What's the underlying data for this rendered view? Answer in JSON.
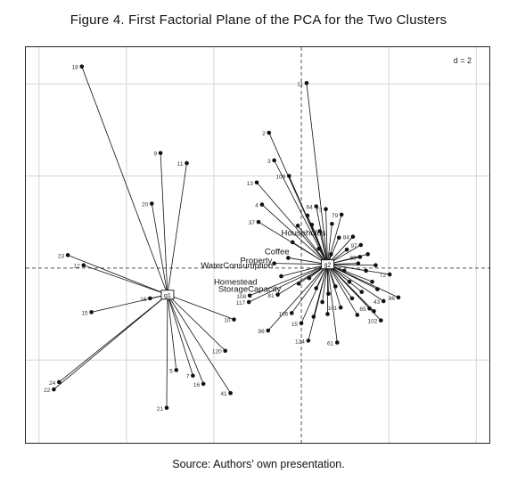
{
  "figure": {
    "title": "Figure 4. First Factorial Plane of the PCA for the Two Clusters",
    "source": "Source: Authors’ own presentation."
  },
  "chart_data": {
    "type": "scatter",
    "title": "Figure 4. First Factorial Plane of the PCA for the Two Clusters",
    "xlabel": "",
    "ylabel": "",
    "xlim": [
      -6.3,
      4.3
    ],
    "ylim": [
      -3.8,
      4.8
    ],
    "grid_step": 2,
    "grid": true,
    "grid_label": "d = 2",
    "clusters": [
      {
        "name": "g1",
        "center": [
          -3.06,
          -0.58
        ],
        "points": [
          {
            "label": "18",
            "x": -5.02,
            "y": 4.38
          },
          {
            "label": "9",
            "x": -3.22,
            "y": 2.5
          },
          {
            "label": "11",
            "x": -2.62,
            "y": 2.28
          },
          {
            "label": "20",
            "x": -3.42,
            "y": 1.4
          },
          {
            "label": "23",
            "x": -5.34,
            "y": 0.28
          },
          {
            "label": "12",
            "x": -4.98,
            "y": 0.06
          },
          {
            "label": "16",
            "x": -3.46,
            "y": -0.66
          },
          {
            "label": "15",
            "x": -4.8,
            "y": -0.96
          },
          {
            "label": "24",
            "x": -5.54,
            "y": -2.48
          },
          {
            "label": "22",
            "x": -5.66,
            "y": -2.64
          },
          {
            "label": "5",
            "x": -2.86,
            "y": -2.22
          },
          {
            "label": "7",
            "x": -2.48,
            "y": -2.34
          },
          {
            "label": "16",
            "x": -2.24,
            "y": -2.52
          },
          {
            "label": "10",
            "x": -1.54,
            "y": -1.12
          },
          {
            "label": "120",
            "x": -1.74,
            "y": -1.8
          },
          {
            "label": "41",
            "x": -1.62,
            "y": -2.72
          },
          {
            "label": "21",
            "x": -3.08,
            "y": -3.04
          }
        ]
      },
      {
        "name": "g2",
        "center": [
          0.6,
          0.08
        ],
        "points": [
          {
            "label": "11",
            "x": 0.12,
            "y": 4.02
          },
          {
            "label": "2",
            "x": -0.74,
            "y": 2.94
          },
          {
            "label": "3",
            "x": -0.62,
            "y": 2.34
          },
          {
            "label": "13",
            "x": -1.02,
            "y": 1.86
          },
          {
            "label": "109",
            "x": -0.28,
            "y": 2.0
          },
          {
            "label": "37",
            "x": -0.98,
            "y": 1.0
          },
          {
            "label": "4",
            "x": -0.9,
            "y": 1.38
          },
          {
            "label": "64",
            "x": 0.34,
            "y": 1.34
          },
          {
            "label": "73",
            "x": 0.56,
            "y": 1.28
          },
          {
            "label": "79",
            "x": 0.92,
            "y": 1.16
          },
          {
            "label": "84",
            "x": 1.18,
            "y": 0.68
          },
          {
            "label": "97",
            "x": 1.36,
            "y": 0.5
          },
          {
            "label": "88",
            "x": 1.34,
            "y": 0.24
          },
          {
            "label": "72",
            "x": 2.02,
            "y": -0.14
          },
          {
            "label": "86",
            "x": 2.22,
            "y": -0.64
          },
          {
            "label": "43",
            "x": 1.88,
            "y": -0.72
          },
          {
            "label": "102",
            "x": 1.82,
            "y": -1.14
          },
          {
            "label": "65",
            "x": 1.56,
            "y": -0.88
          },
          {
            "label": "101",
            "x": 0.9,
            "y": -0.86
          },
          {
            "label": "108",
            "x": -1.18,
            "y": -0.6
          },
          {
            "label": "117",
            "x": -1.2,
            "y": -0.74
          },
          {
            "label": "81",
            "x": -0.54,
            "y": -0.58
          },
          {
            "label": "96",
            "x": -0.76,
            "y": -1.36
          },
          {
            "label": "106",
            "x": -0.22,
            "y": -0.98
          },
          {
            "label": "15",
            "x": 0.0,
            "y": -1.2
          },
          {
            "label": "124",
            "x": 0.16,
            "y": -1.58
          },
          {
            "label": "61",
            "x": 0.82,
            "y": -1.62
          },
          {
            "label": "",
            "x": 0.14,
            "y": 1.14
          },
          {
            "label": "",
            "x": 0.24,
            "y": 0.94
          },
          {
            "label": "",
            "x": 0.42,
            "y": 0.8
          },
          {
            "label": "",
            "x": 0.7,
            "y": 0.96
          },
          {
            "label": "",
            "x": 0.86,
            "y": 0.66
          },
          {
            "label": "",
            "x": 1.04,
            "y": 0.4
          },
          {
            "label": "",
            "x": 1.3,
            "y": 0.1
          },
          {
            "label": "",
            "x": 1.48,
            "y": -0.06
          },
          {
            "label": "",
            "x": 1.62,
            "y": -0.3
          },
          {
            "label": "",
            "x": 1.74,
            "y": -0.46
          },
          {
            "label": "",
            "x": 1.38,
            "y": -0.52
          },
          {
            "label": "",
            "x": 1.16,
            "y": -0.66
          },
          {
            "label": "",
            "x": 1.1,
            "y": -0.3
          },
          {
            "label": "",
            "x": 0.98,
            "y": -0.06
          },
          {
            "label": "",
            "x": 0.78,
            "y": -0.4
          },
          {
            "label": "",
            "x": 0.62,
            "y": -0.56
          },
          {
            "label": "",
            "x": 0.48,
            "y": -0.74
          },
          {
            "label": "",
            "x": 0.34,
            "y": -0.44
          },
          {
            "label": "",
            "x": 0.18,
            "y": -0.22
          },
          {
            "label": "",
            "x": -0.06,
            "y": -0.34
          },
          {
            "label": "",
            "x": -0.3,
            "y": 0.22
          },
          {
            "label": "",
            "x": -0.2,
            "y": 0.56
          },
          {
            "label": "",
            "x": -0.08,
            "y": 0.92
          },
          {
            "label": "",
            "x": 0.4,
            "y": 0.42
          },
          {
            "label": "",
            "x": 0.68,
            "y": 0.3
          },
          {
            "label": "",
            "x": 1.7,
            "y": 0.06
          },
          {
            "label": "",
            "x": 1.52,
            "y": 0.3
          },
          {
            "label": "",
            "x": 0.6,
            "y": -1.0
          },
          {
            "label": "",
            "x": 0.28,
            "y": -1.06
          },
          {
            "label": "",
            "x": 1.28,
            "y": -1.02
          },
          {
            "label": "",
            "x": 1.66,
            "y": -0.94
          },
          {
            "label": "",
            "x": -0.46,
            "y": -0.18
          },
          {
            "label": "",
            "x": -0.62,
            "y": 0.1
          }
        ]
      }
    ],
    "variables": [
      {
        "label": "Households",
        "x": -0.46,
        "y": 0.7
      },
      {
        "label": "Coffee",
        "x": -0.84,
        "y": 0.3
      },
      {
        "label": "Property",
        "x": -1.4,
        "y": 0.1
      },
      {
        "label": "WaterConsumption",
        "x": -2.3,
        "y": 0.0
      },
      {
        "label": "Homestead",
        "x": -2.0,
        "y": -0.36
      },
      {
        "label": "StorageCapacity",
        "x": -1.9,
        "y": -0.52
      }
    ]
  }
}
